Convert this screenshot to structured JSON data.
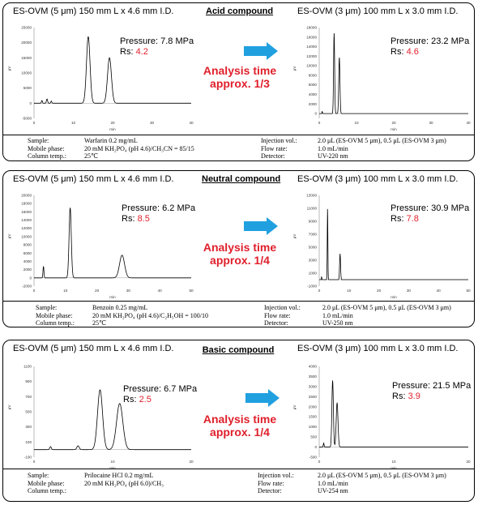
{
  "colors": {
    "accent_red": "#e0202c",
    "arrow_blue": "#21a0e0",
    "trace": "#000000"
  },
  "panels": [
    {
      "left_title": "ES-OVM (5 μm) 150 mm L x 4.6 mm I.D.",
      "right_title": "ES-OVM (3 μm) 100 mm L x 3.0 mm I.D.",
      "compound": "Acid compound",
      "analysis_time": [
        "Analysis time",
        "approx. 1/3"
      ],
      "left": {
        "pressure": "Pressure: 7.8 MPa",
        "rs_label": "Rs: ",
        "rs_value": "4.2"
      },
      "right": {
        "pressure": "Pressure: 23.2 MPa",
        "rs_label": "Rs: ",
        "rs_value": "4.6"
      },
      "conditions": {
        "sample_label": "Sample:",
        "sample": "Warfarin 0.2 mg/mL",
        "mobile_label": "Mobile phase:",
        "mobile": "20 mM KH₂PO₄ (pH 4.6)/CH₃CN = 85/15",
        "temp_label": "Column temp.:",
        "temp": "25℃",
        "inj_label": "Injection vol.:",
        "inj": "2.0 μL (ES-OVM 5 μm), 0.5 μL (ES-OVM 3 μm)",
        "flow_label": "Flow rate:",
        "flow": "1.0 mL/min",
        "det_label": "Detector:",
        "det": "UV-220 nm"
      }
    },
    {
      "left_title": "ES-OVM (5 μm) 150 mm L x 4.6 mm I.D.",
      "right_title": "ES-OVM (3 μm) 100 mm L x 3.0 mm I.D.",
      "compound": "Neutral compound",
      "analysis_time": [
        "Analysis time",
        "approx. 1/4"
      ],
      "left": {
        "pressure": "Pressure: 6.2 MPa",
        "rs_label": "Rs: ",
        "rs_value": "8.5"
      },
      "right": {
        "pressure": "Pressure: 30.9 MPa",
        "rs_label": "Rs: ",
        "rs_value": "7.8"
      },
      "conditions": {
        "sample_label": "Sample:",
        "sample": "Benzoin 0.25 mg/mL",
        "mobile_label": "Mobile phase:",
        "mobile": "20 mM KH₂PO₄ (pH 4.6)/C₂H₅OH = 100/10",
        "temp_label": "Column temp.:",
        "temp": "25℃",
        "inj_label": "Injection vol.:",
        "inj": "2.0 μL (ES-OVM 5 μm), 0.5 μL (ES-OVM 3 μm)",
        "flow_label": "Flow rate:",
        "flow": "1.0 mL/min",
        "det_label": "Detector:",
        "det": "UV-250 nm"
      }
    },
    {
      "left_title": "ES-OVM (5 μm) 150 mm L x 4.6 mm I.D.",
      "right_title": "ES-OVM (3 μm) 100 mm L x 3.0 mm I.D.",
      "compound": "Basic compound",
      "analysis_time": [
        "Analysis time",
        "approx. 1/4"
      ],
      "left": {
        "pressure": "Pressure: 6.7 MPa",
        "rs_label": "Rs: ",
        "rs_value": "2.5"
      },
      "right": {
        "pressure": "Pressure: 21.5 MPa",
        "rs_label": "Rs: ",
        "rs_value": "3.9"
      },
      "conditions": {
        "sample_label": "Sample:",
        "sample": "Prilocaine HCl 0.2 mg/mL",
        "mobile_label": "Mobile phase:",
        "mobile": "20 mM KH₂PO₄ (pH 6.0)/CH₃",
        "temp_label": "Column temp.:",
        "temp": "",
        "inj_label": "Injection vol.:",
        "inj": "2.0 μL (ES-OVM 5 μm), 0.5 μL (ES-OVM 3 μm)",
        "flow_label": "Flow rate:",
        "flow": "1.0 mL/min",
        "det_label": "Detector:",
        "det": "UV-254 nm"
      }
    }
  ],
  "chart_data": [
    {
      "type": "line",
      "name": "acid-5um",
      "xlabel": "min",
      "ylabel": "μV",
      "xlim": [
        0,
        40
      ],
      "ylim": [
        -5000,
        25000
      ],
      "xticks": [
        "0",
        "10",
        "20",
        "30",
        "40"
      ],
      "yticks": [
        "-5000",
        "0",
        "5000",
        "10000",
        "15000",
        "20000",
        "25000"
      ],
      "peaks": [
        {
          "t": 13.8,
          "h": 22000,
          "w": 0.45
        },
        {
          "t": 19.2,
          "h": 15000,
          "w": 0.5
        }
      ],
      "noise": [
        {
          "t": 2.0,
          "h": 900,
          "w": 0.12
        },
        {
          "t": 3.3,
          "h": 1400,
          "w": 0.15
        },
        {
          "t": 4.4,
          "h": 700,
          "w": 0.12
        }
      ]
    },
    {
      "type": "line",
      "name": "acid-3um",
      "xlabel": "min",
      "ylabel": "μV",
      "xlim": [
        0,
        40
      ],
      "ylim": [
        -1000,
        18000
      ],
      "xticks": [
        "0",
        "10",
        "20",
        "30",
        "40"
      ],
      "yticks": [
        "0",
        "2000",
        "4000",
        "6000",
        "8000",
        "10000",
        "12000",
        "14000",
        "16000",
        "18000"
      ],
      "peaks": [
        {
          "t": 4.0,
          "h": 16800,
          "w": 0.14
        },
        {
          "t": 5.4,
          "h": 11800,
          "w": 0.16
        }
      ],
      "noise": [
        {
          "t": 0.8,
          "h": 500,
          "w": 0.06
        }
      ]
    },
    {
      "type": "line",
      "name": "neutral-5um",
      "xlabel": "min",
      "ylabel": "μV",
      "xlim": [
        0,
        50
      ],
      "ylim": [
        -2000,
        20000
      ],
      "xticks": [
        "0",
        "10",
        "20",
        "30",
        "40",
        "50"
      ],
      "yticks": [
        "-2000",
        "0",
        "2000",
        "4000",
        "6000",
        "8000",
        "10000",
        "12000",
        "14000",
        "16000",
        "18000",
        "20000"
      ],
      "peaks": [
        {
          "t": 11.5,
          "h": 17000,
          "w": 0.35
        },
        {
          "t": 28.0,
          "h": 5500,
          "w": 0.8
        }
      ],
      "noise": [
        {
          "t": 3.0,
          "h": 2800,
          "w": 0.15
        }
      ]
    },
    {
      "type": "line",
      "name": "neutral-3um",
      "xlabel": "min",
      "ylabel": "μV",
      "xlim": [
        0,
        50
      ],
      "ylim": [
        -1000,
        13000
      ],
      "xticks": [
        "0",
        "10",
        "20",
        "30",
        "40",
        "50"
      ],
      "yticks": [
        "-1000",
        "1000",
        "3000",
        "5000",
        "7000",
        "9000",
        "11000",
        "13000"
      ],
      "peaks": [
        {
          "t": 2.8,
          "h": 11000,
          "w": 0.1
        },
        {
          "t": 7.0,
          "h": 4000,
          "w": 0.16
        }
      ],
      "noise": [
        {
          "t": 0.8,
          "h": 500,
          "w": 0.06
        }
      ]
    },
    {
      "type": "line",
      "name": "basic-5um",
      "xlabel": "min",
      "ylabel": "μV",
      "xlim": [
        0,
        20
      ],
      "ylim": [
        -100,
        1100
      ],
      "xticks": [
        "0",
        "10",
        "20"
      ],
      "yticks": [
        "-100",
        "100",
        "300",
        "500",
        "700",
        "900",
        "1100"
      ],
      "peaks": [
        {
          "t": 8.4,
          "h": 790,
          "w": 0.32
        },
        {
          "t": 10.9,
          "h": 610,
          "w": 0.4
        }
      ],
      "noise": [
        {
          "t": 2.1,
          "h": 40,
          "w": 0.1
        },
        {
          "t": 5.6,
          "h": 50,
          "w": 0.15
        }
      ]
    },
    {
      "type": "line",
      "name": "basic-3um",
      "xlabel": "min",
      "ylabel": "μV",
      "xlim": [
        0,
        20
      ],
      "ylim": [
        -500,
        4000
      ],
      "xticks": [
        "0",
        "10",
        "20"
      ],
      "yticks": [
        "-500",
        "0",
        "500",
        "1000",
        "1500",
        "2000",
        "2500",
        "3000",
        "3500",
        "4000"
      ],
      "peaks": [
        {
          "t": 1.8,
          "h": 3300,
          "w": 0.1
        },
        {
          "t": 2.4,
          "h": 2200,
          "w": 0.12
        }
      ],
      "noise": [
        {
          "t": 0.6,
          "h": 200,
          "w": 0.05
        }
      ]
    }
  ]
}
